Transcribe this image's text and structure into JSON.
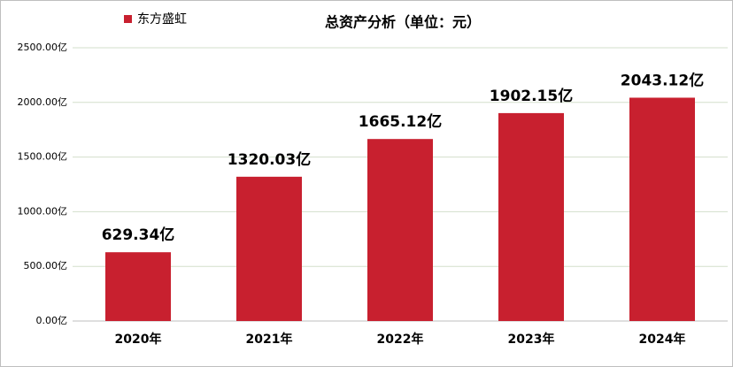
{
  "chart_data": {
    "type": "bar",
    "title": "总资产分析（单位：元）",
    "categories": [
      "2020年",
      "2021年",
      "2022年",
      "2023年",
      "2024年"
    ],
    "series": [
      {
        "name": "东方盛虹",
        "color": "#c8202f",
        "values": [
          629.34,
          1320.03,
          1665.12,
          1902.15,
          2043.12
        ],
        "value_labels": [
          "629.34亿",
          "1320.03亿",
          "1665.12亿",
          "1902.15亿",
          "2043.12亿"
        ]
      }
    ],
    "ylim": [
      0,
      2500
    ],
    "yticks": [
      {
        "value": 0,
        "label": "0.00亿"
      },
      {
        "value": 500,
        "label": "500.00亿"
      },
      {
        "value": 1000,
        "label": "1000.00亿"
      },
      {
        "value": 1500,
        "label": "1500.00亿"
      },
      {
        "value": 2000,
        "label": "2000.00亿"
      },
      {
        "value": 2500,
        "label": "2500.00亿"
      }
    ],
    "grid": true,
    "legend": "top-left"
  }
}
